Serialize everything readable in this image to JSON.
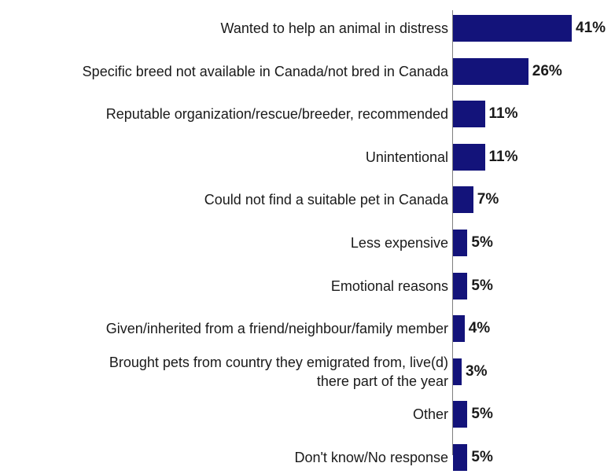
{
  "chart_data": {
    "type": "bar",
    "orientation": "horizontal",
    "categories": [
      "Wanted to help an animal in distress",
      "Specific breed not available in Canada/not bred in Canada",
      "Reputable organization/rescue/breeder, recommended",
      "Unintentional",
      "Could not find a suitable pet in Canada",
      "Less expensive",
      "Emotional reasons",
      "Given/inherited from a friend/neighbour/family member",
      "Brought pets from country they emigrated from, live(d) there part of the year",
      "Other",
      "Don't know/No response"
    ],
    "category_lines": [
      [
        "Wanted to help an animal in distress"
      ],
      [
        "Specific breed not available in Canada/not bred in Canada"
      ],
      [
        "Reputable organization/rescue/breeder, recommended"
      ],
      [
        "Unintentional"
      ],
      [
        "Could not find a suitable pet in Canada"
      ],
      [
        "Less expensive"
      ],
      [
        "Emotional reasons"
      ],
      [
        "Given/inherited from a friend/neighbour/family member"
      ],
      [
        "Brought pets from country they emigrated from, live(d)",
        "there part of the year"
      ],
      [
        "Other"
      ],
      [
        "Don't know/No response"
      ]
    ],
    "values": [
      41,
      26,
      11,
      11,
      7,
      5,
      5,
      4,
      3,
      5,
      5
    ],
    "value_labels": [
      "41%",
      "26%",
      "11%",
      "11%",
      "7%",
      "5%",
      "5%",
      "4%",
      "3%",
      "5%",
      "5%"
    ],
    "unit": "%",
    "xlim": [
      0,
      41
    ],
    "bar_color": "#13137a",
    "grid": false,
    "legend": "none"
  }
}
